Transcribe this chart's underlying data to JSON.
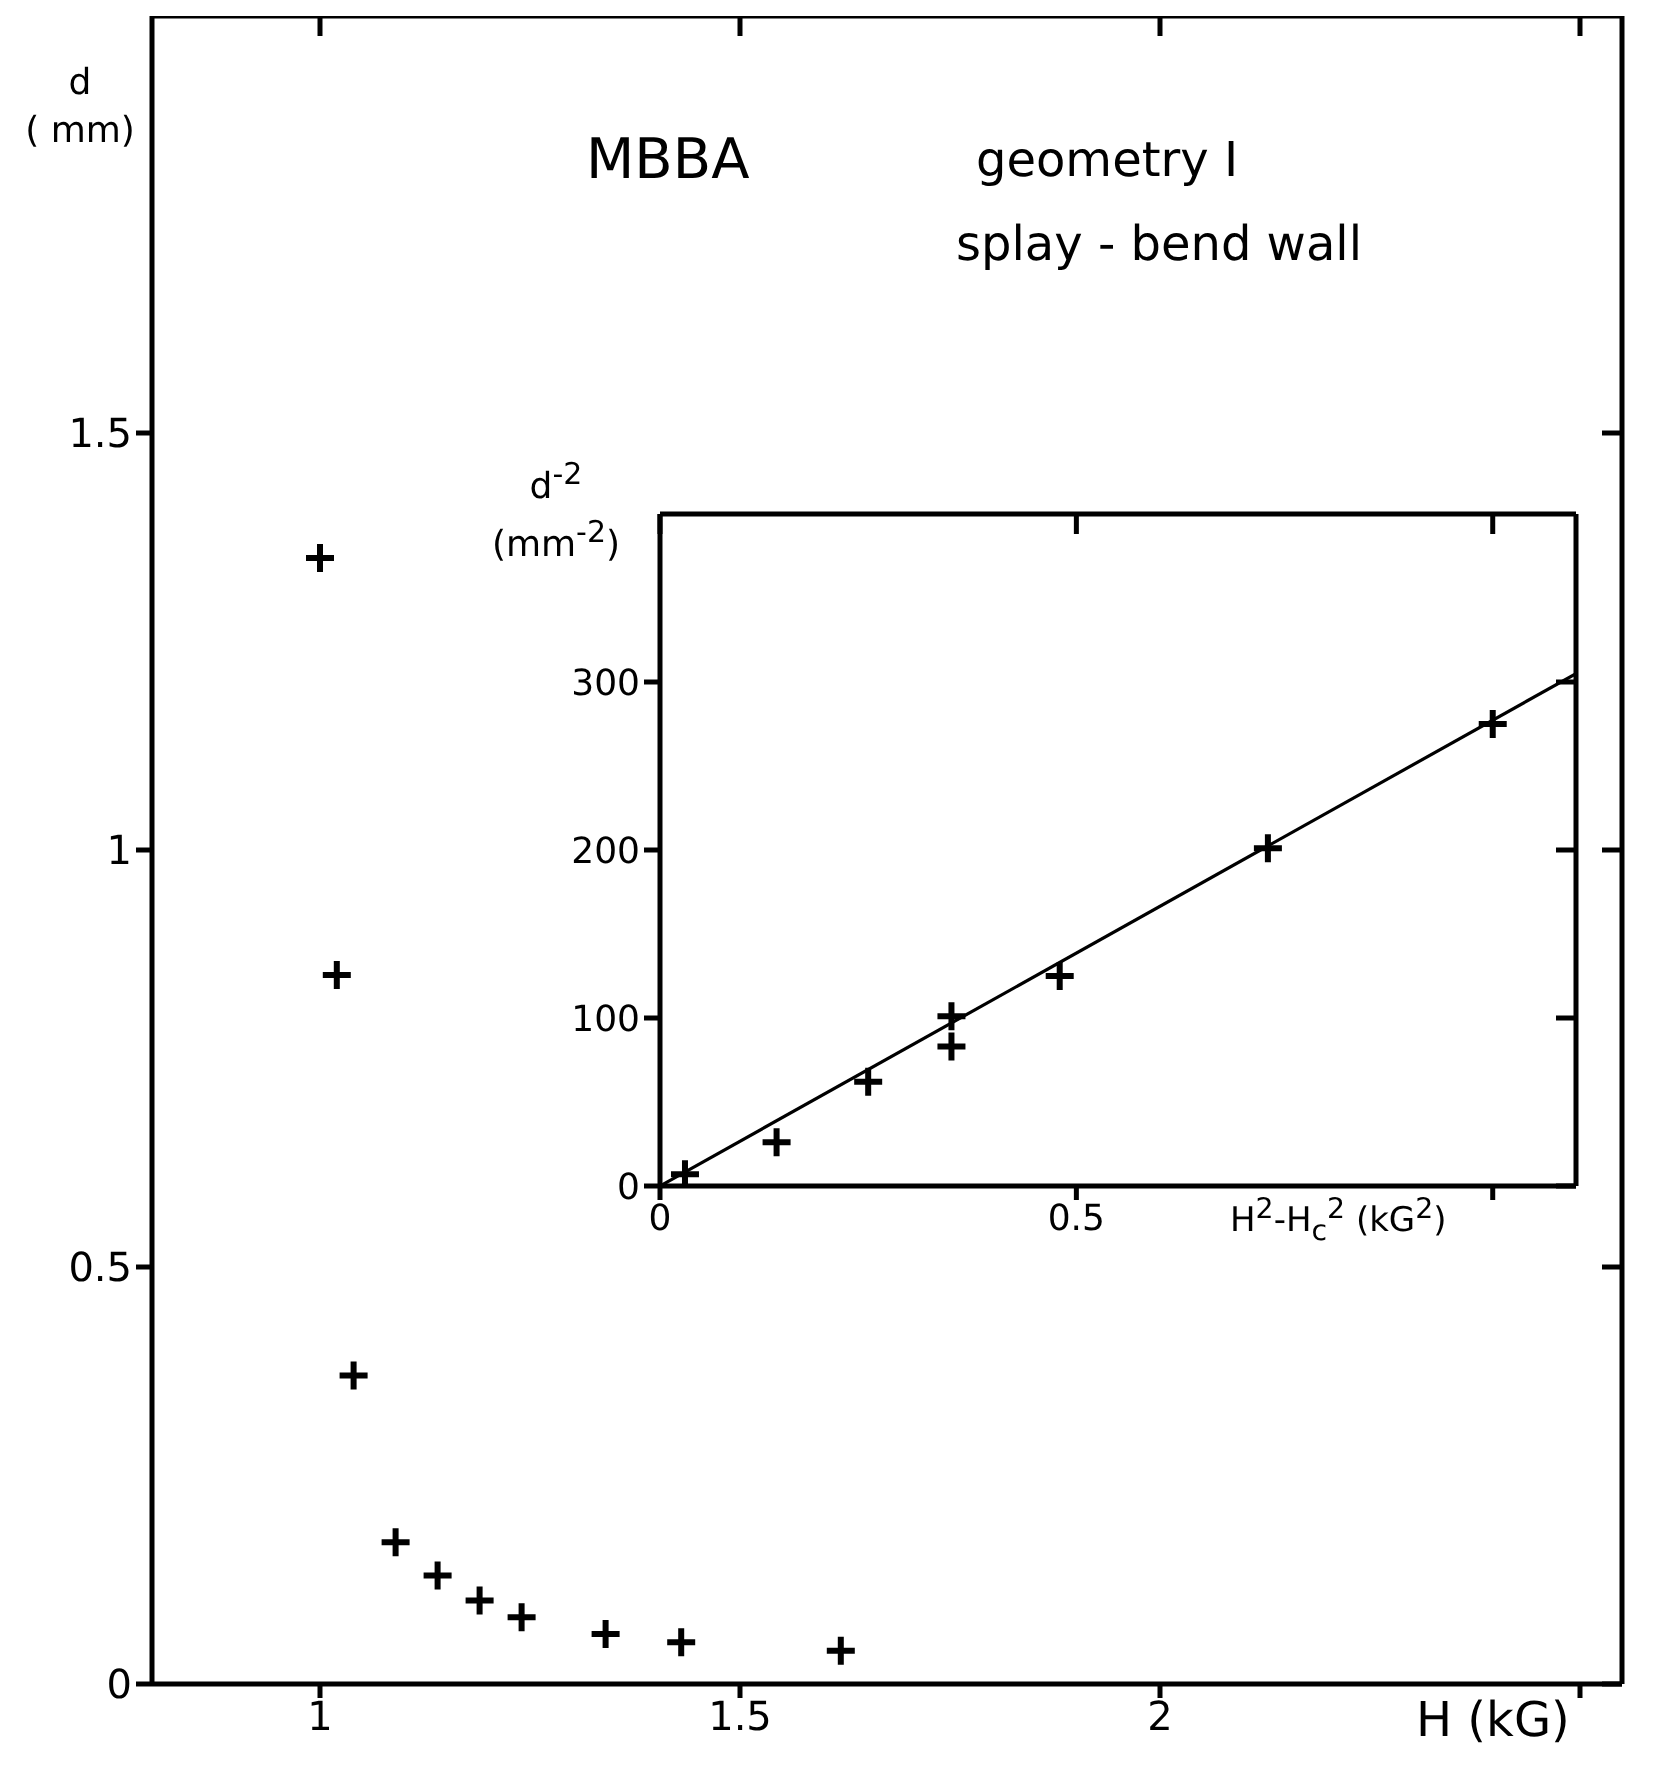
{
  "chart_data": [
    {
      "type": "scatter",
      "title": "MBBA",
      "subtitle": "geometry I",
      "annotations": [
        "splay - bend wall"
      ],
      "xlabel": "H (kG)",
      "ylabel": "d\n( mm)",
      "x": [
        1.0,
        1.02,
        1.04,
        1.09,
        1.14,
        1.19,
        1.24,
        1.34,
        1.43,
        1.62
      ],
      "values": [
        1.35,
        0.85,
        0.37,
        0.17,
        0.13,
        0.1,
        0.08,
        0.06,
        0.05,
        0.04
      ],
      "color": "#000000",
      "marker": "cross",
      "xlim": [
        0.8,
        2.55
      ],
      "xticks": [
        1,
        1.5,
        2,
        {
          "value": 2.5,
          "label": null
        }
      ],
      "ylim": [
        0,
        2
      ],
      "yticks": [
        0,
        0.5,
        1,
        1.5
      ]
    },
    {
      "type": "scatter",
      "xlabel": "H$^{2}$-H$_{c}$$^{2}$ (kG$^{2}$)",
      "ylabel": "d$^{-2}$\n(mm$^{-2}$)",
      "series": [
        {
          "color": "#000000",
          "marker": "cross",
          "x": [
            0.03,
            0.14,
            0.25,
            0.35,
            0.35,
            0.48,
            0.73,
            1.0
          ],
          "values": [
            7,
            26,
            62,
            101,
            83,
            125,
            201,
            275
          ]
        },
        {
          "type": "line",
          "color": "#000000",
          "marker": "none",
          "x": [
            0,
            1.1
          ],
          "values": [
            0,
            305
          ]
        }
      ],
      "line_style": "solid",
      "xlim": [
        0,
        1.1
      ],
      "xticks": [
        0,
        0.5,
        {
          "value": 1,
          "label": null
        }
      ],
      "ylim": [
        0,
        400
      ],
      "yticks": [
        0,
        100,
        200,
        300
      ]
    }
  ]
}
